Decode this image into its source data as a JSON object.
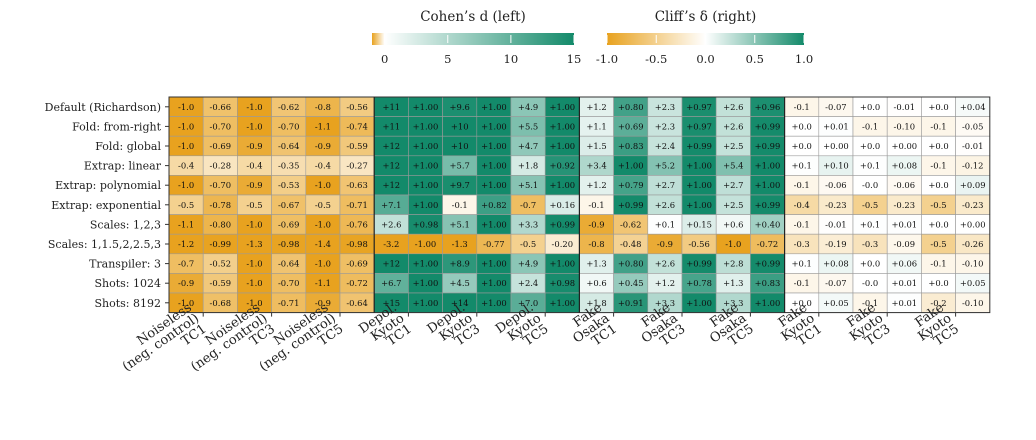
{
  "chart_data": {
    "type": "heatmap",
    "rows": [
      "Default (Richardson)",
      "Fold: from-right",
      "Fold: global",
      "Extrap: linear",
      "Extrap: polynomial",
      "Extrap: exponential",
      "Scales: 1,2,3",
      "Scales: 1,1.5,2,2.5,3",
      "Transpiler: 3",
      "Shots: 1024",
      "Shots: 8192"
    ],
    "columns": [
      {
        "lines": [
          "Noiseless",
          "(neg. control)",
          "TC1"
        ]
      },
      {
        "lines": [
          "Noiseless",
          "(neg. control)",
          "TC3"
        ]
      },
      {
        "lines": [
          "Noiseless",
          "(neg. control)",
          "TC5"
        ]
      },
      {
        "lines": [
          "Depol.",
          "Kyoto",
          "TC1"
        ]
      },
      {
        "lines": [
          "Depol.",
          "Kyoto",
          "TC3"
        ]
      },
      {
        "lines": [
          "Depol.",
          "Kyoto",
          "TC5"
        ]
      },
      {
        "lines": [
          "Fake",
          "Osaka",
          "TC1"
        ]
      },
      {
        "lines": [
          "Fake",
          "Osaka",
          "TC3"
        ]
      },
      {
        "lines": [
          "Fake",
          "Osaka",
          "TC5"
        ]
      },
      {
        "lines": [
          "Fake",
          "Kyoto",
          "TC1"
        ]
      },
      {
        "lines": [
          "Fake",
          "Kyoto",
          "TC3"
        ]
      },
      {
        "lines": [
          "Fake",
          "Kyoto",
          "TC5"
        ]
      }
    ],
    "d_values": [
      [
        -1.0,
        -1.0,
        -0.8,
        11,
        9.6,
        4.9,
        1.2,
        2.3,
        2.6,
        -0.1,
        0.0,
        0.0
      ],
      [
        -1.0,
        -1.0,
        -1.1,
        11,
        10,
        5.5,
        1.1,
        2.3,
        2.6,
        0.0,
        -0.1,
        -0.1
      ],
      [
        -1.0,
        -0.9,
        -0.9,
        12,
        10,
        4.7,
        1.5,
        2.4,
        2.5,
        0.0,
        0.0,
        0.0
      ],
      [
        -0.4,
        -0.4,
        -0.4,
        12,
        5.7,
        1.8,
        3.4,
        5.2,
        5.4,
        0.1,
        0.1,
        -0.1
      ],
      [
        -1.0,
        -0.9,
        -1.0,
        12,
        9.7,
        5.1,
        1.2,
        2.7,
        2.7,
        -0.1,
        0.0,
        0.0
      ],
      [
        -0.5,
        -0.5,
        -0.5,
        7.1,
        -0.1,
        -0.7,
        -0.1,
        2.6,
        2.5,
        -0.4,
        -0.5,
        -0.5
      ],
      [
        -1.1,
        -1.0,
        -1.0,
        2.6,
        5.1,
        3.3,
        -0.9,
        0.1,
        0.6,
        -0.1,
        0.1,
        0.0
      ],
      [
        -1.2,
        -1.3,
        -1.4,
        -3.2,
        -1.3,
        -0.5,
        -0.8,
        -0.9,
        -1.0,
        -0.3,
        -0.3,
        -0.5
      ],
      [
        -0.7,
        -1.0,
        -1.0,
        12,
        8.9,
        4.9,
        1.3,
        2.6,
        2.8,
        0.1,
        0.0,
        -0.1
      ],
      [
        -0.9,
        -1.0,
        -1.1,
        6.7,
        4.5,
        2.4,
        0.6,
        1.2,
        1.3,
        -0.1,
        0.0,
        0.0
      ],
      [
        -1.0,
        -1.0,
        -0.9,
        15,
        14,
        7.0,
        1.8,
        3.3,
        3.3,
        0.0,
        -0.1,
        -0.2
      ]
    ],
    "d_labels": [
      [
        "-1.0",
        "-1.0",
        "-0.8",
        "+11",
        "+9.6",
        "+4.9",
        "+1.2",
        "+2.3",
        "+2.6",
        "-0.1",
        "+0.0",
        "+0.0"
      ],
      [
        "-1.0",
        "-1.0",
        "-1.1",
        "+11",
        "+10",
        "+5.5",
        "+1.1",
        "+2.3",
        "+2.6",
        "+0.0",
        "-0.1",
        "-0.1"
      ],
      [
        "-1.0",
        "-0.9",
        "-0.9",
        "+12",
        "+10",
        "+4.7",
        "+1.5",
        "+2.4",
        "+2.5",
        "+0.0",
        "+0.0",
        "+0.0"
      ],
      [
        "-0.4",
        "-0.4",
        "-0.4",
        "+12",
        "+5.7",
        "+1.8",
        "+3.4",
        "+5.2",
        "+5.4",
        "+0.1",
        "+0.1",
        "-0.1"
      ],
      [
        "-1.0",
        "-0.9",
        "-1.0",
        "+12",
        "+9.7",
        "+5.1",
        "+1.2",
        "+2.7",
        "+2.7",
        "-0.1",
        "-0.0",
        "+0.0"
      ],
      [
        "-0.5",
        "-0.5",
        "-0.5",
        "+7.1",
        "-0.1",
        "-0.7",
        "-0.1",
        "+2.6",
        "+2.5",
        "-0.4",
        "-0.5",
        "-0.5"
      ],
      [
        "-1.1",
        "-1.0",
        "-1.0",
        "+2.6",
        "+5.1",
        "+3.3",
        "-0.9",
        "+0.1",
        "+0.6",
        "-0.1",
        "+0.1",
        "+0.0"
      ],
      [
        "-1.2",
        "-1.3",
        "-1.4",
        "-3.2",
        "-1.3",
        "-0.5",
        "-0.8",
        "-0.9",
        "-1.0",
        "-0.3",
        "-0.3",
        "-0.5"
      ],
      [
        "-0.7",
        "-1.0",
        "-1.0",
        "+12",
        "+8.9",
        "+4.9",
        "+1.3",
        "+2.6",
        "+2.8",
        "+0.1",
        "+0.0",
        "-0.1"
      ],
      [
        "-0.9",
        "-1.0",
        "-1.1",
        "+6.7",
        "+4.5",
        "+2.4",
        "+0.6",
        "+1.2",
        "+1.3",
        "-0.1",
        "-0.0",
        "+0.0"
      ],
      [
        "-1.0",
        "-1.0",
        "-0.9",
        "+15",
        "+14",
        "+7.0",
        "+1.8",
        "+3.3",
        "+3.3",
        "+0.0",
        "-0.1",
        "-0.2"
      ]
    ],
    "delta_values": [
      [
        -0.66,
        -0.62,
        -0.56,
        1.0,
        1.0,
        1.0,
        0.8,
        0.97,
        0.96,
        -0.07,
        -0.01,
        0.04
      ],
      [
        -0.7,
        -0.7,
        -0.74,
        1.0,
        1.0,
        1.0,
        0.69,
        0.97,
        0.99,
        0.01,
        -0.1,
        -0.05
      ],
      [
        -0.69,
        -0.64,
        -0.59,
        1.0,
        1.0,
        1.0,
        0.83,
        0.99,
        0.99,
        0.0,
        0.0,
        -0.01
      ],
      [
        -0.28,
        -0.35,
        -0.27,
        1.0,
        1.0,
        0.92,
        1.0,
        1.0,
        1.0,
        0.1,
        0.08,
        -0.12
      ],
      [
        -0.7,
        -0.53,
        -0.63,
        1.0,
        1.0,
        1.0,
        0.79,
        1.0,
        1.0,
        -0.06,
        -0.06,
        0.09
      ],
      [
        -0.78,
        -0.67,
        -0.71,
        1.0,
        0.82,
        0.16,
        0.99,
        1.0,
        0.99,
        -0.23,
        -0.23,
        -0.23
      ],
      [
        -0.8,
        -0.69,
        -0.76,
        0.98,
        1.0,
        0.99,
        -0.62,
        0.15,
        0.4,
        -0.01,
        0.01,
        0.0
      ],
      [
        -0.99,
        -0.98,
        -0.98,
        -1.0,
        -0.77,
        -0.2,
        -0.48,
        -0.56,
        -0.72,
        -0.19,
        -0.09,
        -0.26
      ],
      [
        -0.52,
        -0.64,
        -0.69,
        1.0,
        1.0,
        1.0,
        0.8,
        0.99,
        0.99,
        0.08,
        0.06,
        -0.1
      ],
      [
        -0.59,
        -0.7,
        -0.72,
        1.0,
        1.0,
        0.98,
        0.45,
        0.78,
        0.83,
        -0.07,
        0.01,
        0.05
      ],
      [
        -0.68,
        -0.71,
        -0.64,
        1.0,
        1.0,
        1.0,
        0.91,
        1.0,
        1.0,
        0.05,
        0.01,
        -0.1
      ]
    ],
    "delta_labels": [
      [
        "-0.66",
        "-0.62",
        "-0.56",
        "+1.00",
        "+1.00",
        "+1.00",
        "+0.80",
        "+0.97",
        "+0.96",
        "-0.07",
        "-0.01",
        "+0.04"
      ],
      [
        "-0.70",
        "-0.70",
        "-0.74",
        "+1.00",
        "+1.00",
        "+1.00",
        "+0.69",
        "+0.97",
        "+0.99",
        "+0.01",
        "-0.10",
        "-0.05"
      ],
      [
        "-0.69",
        "-0.64",
        "-0.59",
        "+1.00",
        "+1.00",
        "+1.00",
        "+0.83",
        "+0.99",
        "+0.99",
        "+0.00",
        "+0.00",
        "-0.01"
      ],
      [
        "-0.28",
        "-0.35",
        "-0.27",
        "+1.00",
        "+1.00",
        "+0.92",
        "+1.00",
        "+1.00",
        "+1.00",
        "+0.10",
        "+0.08",
        "-0.12"
      ],
      [
        "-0.70",
        "-0.53",
        "-0.63",
        "+1.00",
        "+1.00",
        "+1.00",
        "+0.79",
        "+1.00",
        "+1.00",
        "-0.06",
        "-0.06",
        "+0.09"
      ],
      [
        "-0.78",
        "-0.67",
        "-0.71",
        "+1.00",
        "+0.82",
        "+0.16",
        "+0.99",
        "+1.00",
        "+0.99",
        "-0.23",
        "-0.23",
        "-0.23"
      ],
      [
        "-0.80",
        "-0.69",
        "-0.76",
        "+0.98",
        "+1.00",
        "+0.99",
        "-0.62",
        "+0.15",
        "+0.40",
        "-0.01",
        "+0.01",
        "+0.00"
      ],
      [
        "-0.99",
        "-0.98",
        "-0.98",
        "-1.00",
        "-0.77",
        "-0.20",
        "-0.48",
        "-0.56",
        "-0.72",
        "-0.19",
        "-0.09",
        "-0.26"
      ],
      [
        "-0.52",
        "-0.64",
        "-0.69",
        "+1.00",
        "+1.00",
        "+1.00",
        "+0.80",
        "+0.99",
        "+0.99",
        "+0.08",
        "+0.06",
        "-0.10"
      ],
      [
        "-0.59",
        "-0.70",
        "-0.72",
        "+1.00",
        "+1.00",
        "+0.98",
        "+0.45",
        "+0.78",
        "+0.83",
        "-0.07",
        "+0.01",
        "+0.05"
      ],
      [
        "-0.68",
        "-0.71",
        "-0.64",
        "+1.00",
        "+1.00",
        "+1.00",
        "+0.91",
        "+1.00",
        "+1.00",
        "+0.05",
        "+0.01",
        "-0.10"
      ]
    ],
    "colorbars": [
      {
        "title": "Cohen’s d (left)",
        "range": [
          -1,
          15
        ],
        "ticks": [
          0,
          5,
          10,
          15
        ],
        "tick_labels": [
          "0",
          "5",
          "10",
          "15"
        ]
      },
      {
        "title": "Cliff’s δ (right)",
        "range": [
          -1,
          1
        ],
        "ticks": [
          -1,
          -0.5,
          0,
          0.5,
          1
        ],
        "tick_labels": [
          "-1.0",
          "-0.5",
          "0.0",
          "0.5",
          "1.0"
        ]
      }
    ],
    "group_separators_after_column": [
      3,
      6,
      9
    ],
    "colors": {
      "neg": "#e8a21f",
      "mid": "#ffffff",
      "pos": "#138a6a"
    }
  }
}
